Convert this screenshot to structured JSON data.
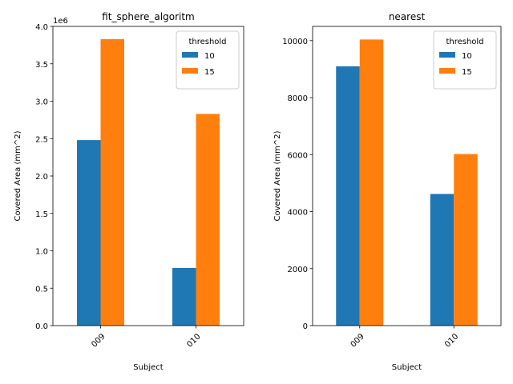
{
  "chart_data": [
    {
      "type": "bar",
      "title": "fit_sphere_algoritm",
      "xlabel": "Subject",
      "ylabel": "Covered Area (mm^2)",
      "categories": [
        "009",
        "010"
      ],
      "ylim": [
        0,
        4000000
      ],
      "yticks": [
        0,
        500000,
        1000000,
        1500000,
        2000000,
        2500000,
        3000000,
        3500000,
        4000000
      ],
      "ytick_labels": [
        "0.0",
        "0.5",
        "1.0",
        "1.5",
        "2.0",
        "2.5",
        "3.0",
        "3.5",
        "4.0"
      ],
      "offset_label": "1e6",
      "legend_title": "threshold",
      "legend_position": "upper-right",
      "grid": false,
      "series": [
        {
          "name": "10",
          "color": "#1f77b4",
          "values": [
            2480000,
            770000
          ]
        },
        {
          "name": "15",
          "color": "#ff7f0e",
          "values": [
            3830000,
            2830000
          ]
        }
      ]
    },
    {
      "type": "bar",
      "title": "nearest",
      "xlabel": "Subject",
      "ylabel": "Covered Area (mm^2)",
      "categories": [
        "009",
        "010"
      ],
      "ylim": [
        0,
        10500
      ],
      "yticks": [
        0,
        2000,
        4000,
        6000,
        8000,
        10000
      ],
      "ytick_labels": [
        "0",
        "2000",
        "4000",
        "6000",
        "8000",
        "10000"
      ],
      "offset_label": "",
      "legend_title": "threshold",
      "legend_position": "upper-right",
      "grid": false,
      "series": [
        {
          "name": "10",
          "color": "#1f77b4",
          "values": [
            9100,
            4620
          ]
        },
        {
          "name": "15",
          "color": "#ff7f0e",
          "values": [
            10040,
            6020
          ]
        }
      ]
    }
  ]
}
